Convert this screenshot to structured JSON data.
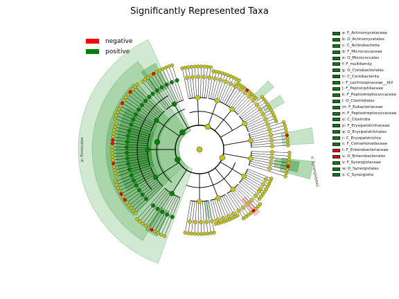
{
  "title": "Significantly Represented Taxa",
  "legend": [
    {
      "label": "negative",
      "color": "#ff0000"
    },
    {
      "label": "positive",
      "color": "#008000"
    }
  ],
  "sector_labels": {
    "firmicutes": "p: Firmicutes",
    "synergistetes": "x: Synergistetes"
  },
  "key": [
    {
      "text": "a: F_Actinomycetaceae",
      "sign": "positive"
    },
    {
      "text": "b: O_Actinomycetales",
      "sign": "positive"
    },
    {
      "text": "c: C_Actinobacteria",
      "sign": "positive"
    },
    {
      "text": "d: F_Micrococcaceae",
      "sign": "positive"
    },
    {
      "text": "e: O_Micrococcales",
      "sign": "positive"
    },
    {
      "text": "f: F_multifamily",
      "sign": "positive"
    },
    {
      "text": "g: O_Coriobacteriales",
      "sign": "positive"
    },
    {
      "text": "h: C_Coriobacteriia",
      "sign": "positive"
    },
    {
      "text": "i: F_Lachnospiraceae__XIV",
      "sign": "positive"
    },
    {
      "text": "j: F_Peptoniphilaceae",
      "sign": "positive"
    },
    {
      "text": "k: F_Peptostreptococcaceae",
      "sign": "positive"
    },
    {
      "text": "l: O_Clostridiales",
      "sign": "positive"
    },
    {
      "text": "m: F_Eubacteriaceae",
      "sign": "positive"
    },
    {
      "text": "n: F_Peptostreptococcaceae",
      "sign": "positive"
    },
    {
      "text": "o: C_Clostridia",
      "sign": "positive"
    },
    {
      "text": "p: F_Erysipelotrichaceae",
      "sign": "positive"
    },
    {
      "text": "q: O_Erysipelotrichales",
      "sign": "positive"
    },
    {
      "text": "r: C_Erysipelotrichia",
      "sign": "positive"
    },
    {
      "text": "s: F_Comamonadaceae",
      "sign": "positive"
    },
    {
      "text": "t: F_Enterobacteriaceae",
      "sign": "negative"
    },
    {
      "text": "u: O_Enterobacterales",
      "sign": "negative"
    },
    {
      "text": "v: F_Synergistaceae",
      "sign": "positive"
    },
    {
      "text": "w: O_Synergistales",
      "sign": "positive"
    },
    {
      "text": "x: C_Synergistia",
      "sign": "positive"
    }
  ],
  "colors": {
    "positive": "#008000",
    "negative": "#ff0000",
    "neutral_node": "#c3c318"
  }
}
